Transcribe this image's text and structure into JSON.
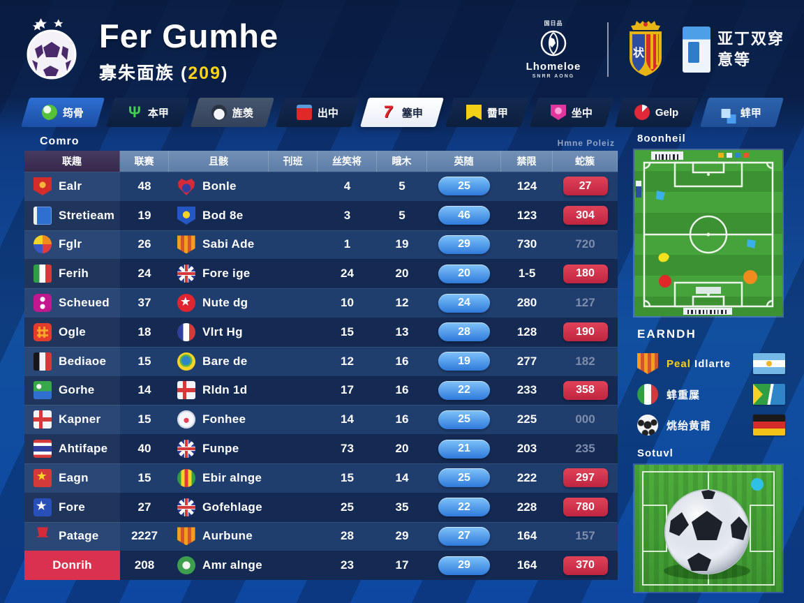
{
  "header": {
    "title": "Fer Gumhe",
    "subtitle_prefix": "寡朱面族 (",
    "subtitle_number": "209",
    "subtitle_suffix": ")",
    "globe_top": "国日品",
    "globe_label": "Lhomeloe",
    "globe_sub": "SNRR AONG",
    "crest_glyph": "状",
    "right_logo_line1": "亚丁双穿",
    "right_logo_line2": "意等"
  },
  "nav": {
    "tabs": [
      {
        "label": "筠骨",
        "icon": "ball-green",
        "bg": "blue",
        "active": false
      },
      {
        "label": "本甲",
        "icon": "trident-green",
        "bg": "dark",
        "active": false
      },
      {
        "label": "旌羡",
        "icon": "panda",
        "bg": "slate",
        "active": false
      },
      {
        "label": "出中",
        "icon": "flag-red",
        "bg": "dark",
        "active": false
      },
      {
        "label": "簺申",
        "icon": "mark-red",
        "bg": "white",
        "active": true
      },
      {
        "label": "羀甲",
        "icon": "flag-yellow",
        "bg": "dark",
        "active": false
      },
      {
        "label": "坐中",
        "icon": "shield-pink",
        "bg": "dark",
        "active": false
      },
      {
        "label": "Gelp",
        "icon": "circle-red",
        "bg": "dark",
        "active": false
      },
      {
        "label": "蝆甲",
        "icon": "squares-blue",
        "bg": "lightblue",
        "active": false
      }
    ]
  },
  "table": {
    "title": "Comro",
    "meta": "Hmne Poleiz",
    "headers": [
      "联趣",
      "联赛",
      "且骸",
      "刊班",
      "丝笶将",
      "睋木",
      "英随",
      "禁限",
      "蛇簇"
    ],
    "rows": [
      {
        "team": {
          "icon": "crest-red",
          "name": "Ealr"
        },
        "played": "48",
        "opp": {
          "icon": "heart-red",
          "name": "Bonle"
        },
        "v1": "4",
        "v2": "5",
        "pill": "25",
        "v3": "124",
        "last": {
          "value": "27",
          "type": "red"
        }
      },
      {
        "team": {
          "icon": "flag-blue",
          "name": "Stretieam"
        },
        "played": "19",
        "opp": {
          "icon": "shield-blue",
          "name": "Bod 8e"
        },
        "v1": "3",
        "v2": "5",
        "pill": "46",
        "v3": "123",
        "last": {
          "value": "304",
          "type": "red"
        }
      },
      {
        "team": {
          "icon": "circle-quad",
          "name": "Fglr"
        },
        "played": "26",
        "opp": {
          "icon": "shield-orange",
          "name": "Sabi Ade"
        },
        "v1": "1",
        "v2": "19",
        "pill": "29",
        "v3": "730",
        "last": {
          "value": "720",
          "type": "gray"
        }
      },
      {
        "team": {
          "icon": "flag-italy",
          "name": "Ferih"
        },
        "played": "24",
        "opp": {
          "icon": "flag-uk",
          "name": "Fore ige"
        },
        "v1": "24",
        "v2": "20",
        "pill": "20",
        "v3": "1-5",
        "last": {
          "value": "180",
          "type": "red"
        }
      },
      {
        "team": {
          "icon": "badge-magenta",
          "name": "Scheued"
        },
        "played": "37",
        "opp": {
          "icon": "circle-star",
          "name": "Nute dg"
        },
        "v1": "10",
        "v2": "12",
        "pill": "24",
        "v3": "280",
        "last": {
          "value": "127",
          "type": "gray"
        }
      },
      {
        "team": {
          "icon": "badge-red-grid",
          "name": "Ogle"
        },
        "played": "18",
        "opp": {
          "icon": "flag-france",
          "name": "Vlrt Hg"
        },
        "v1": "15",
        "v2": "13",
        "pill": "28",
        "v3": "128",
        "last": {
          "value": "190",
          "type": "red"
        }
      },
      {
        "team": {
          "icon": "flag-bwr",
          "name": "Bediaoe"
        },
        "played": "15",
        "opp": {
          "icon": "circle-globe",
          "name": "Bare de"
        },
        "v1": "12",
        "v2": "16",
        "pill": "19",
        "v3": "277",
        "last": {
          "value": "182",
          "type": "gray"
        }
      },
      {
        "team": {
          "icon": "flag-green-blue",
          "name": "Gorhe"
        },
        "played": "14",
        "opp": {
          "icon": "flag-red-cross",
          "name": "Rldn 1d"
        },
        "v1": "17",
        "v2": "16",
        "pill": "22",
        "v3": "233",
        "last": {
          "value": "358",
          "type": "red"
        }
      },
      {
        "team": {
          "icon": "flag-red-cross",
          "name": "Kapner"
        },
        "played": "15",
        "opp": {
          "icon": "crest-white",
          "name": "Fonhee"
        },
        "v1": "14",
        "v2": "16",
        "pill": "25",
        "v3": "225",
        "last": {
          "value": "000",
          "type": "gray"
        }
      },
      {
        "team": {
          "icon": "flag-stripes",
          "name": "Ahtifape"
        },
        "played": "40",
        "opp": {
          "icon": "flag-uk",
          "name": "Funpe"
        },
        "v1": "73",
        "v2": "20",
        "pill": "21",
        "v3": "203",
        "last": {
          "value": "235",
          "type": "gray"
        }
      },
      {
        "team": {
          "icon": "flag-vietnam",
          "name": "Eagn"
        },
        "played": "15",
        "opp": {
          "icon": "circle-stripes",
          "name": "Ebir alnge"
        },
        "v1": "15",
        "v2": "14",
        "pill": "25",
        "v3": "222",
        "last": {
          "value": "297",
          "type": "red"
        }
      },
      {
        "team": {
          "icon": "badge-star-blue",
          "name": "Fore"
        },
        "played": "27",
        "opp": {
          "icon": "flag-uk",
          "name": "Gofehlage"
        },
        "v1": "25",
        "v2": "35",
        "pill": "22",
        "v3": "228",
        "last": {
          "value": "780",
          "type": "red"
        }
      },
      {
        "team": {
          "icon": "pin-red",
          "name": "Patage"
        },
        "played": "2227",
        "opp": {
          "icon": "shield-orange",
          "name": "Aurbune"
        },
        "v1": "28",
        "v2": "29",
        "pill": "27",
        "v3": "164",
        "last": {
          "value": "157",
          "type": "gray"
        }
      },
      {
        "team": {
          "icon": null,
          "name": "Donrih",
          "highlight": true
        },
        "played": "208",
        "opp": {
          "icon": "circle-green",
          "name": "Amr alnge"
        },
        "v1": "23",
        "v2": "17",
        "pill": "29",
        "v3": "164",
        "last": {
          "value": "370",
          "type": "red"
        }
      }
    ]
  },
  "sidebar": {
    "pitch_title": "8oonheil",
    "legend_title": "EARNDH",
    "legend": [
      {
        "icon": "shield-orange",
        "em": "Peal",
        "label": "Idlarte",
        "flag": "argentina"
      },
      {
        "icon": "circle-italy",
        "em": "",
        "label": "蝆重屟",
        "flag": "southafrica"
      },
      {
        "icon": "ball-bw",
        "em": "",
        "label": "烑绐黄甫",
        "flag": "germany"
      }
    ],
    "photo_title": "Sotuvl"
  },
  "colors": {
    "accent_yellow": "#ffd318",
    "pill_blue": "#2e7ada",
    "pill_red": "#d9314e",
    "row_light": "#1f3d6d",
    "row_dark": "#142a53",
    "header_steel": "#5d7ea8",
    "header_purple": "#37294d"
  }
}
